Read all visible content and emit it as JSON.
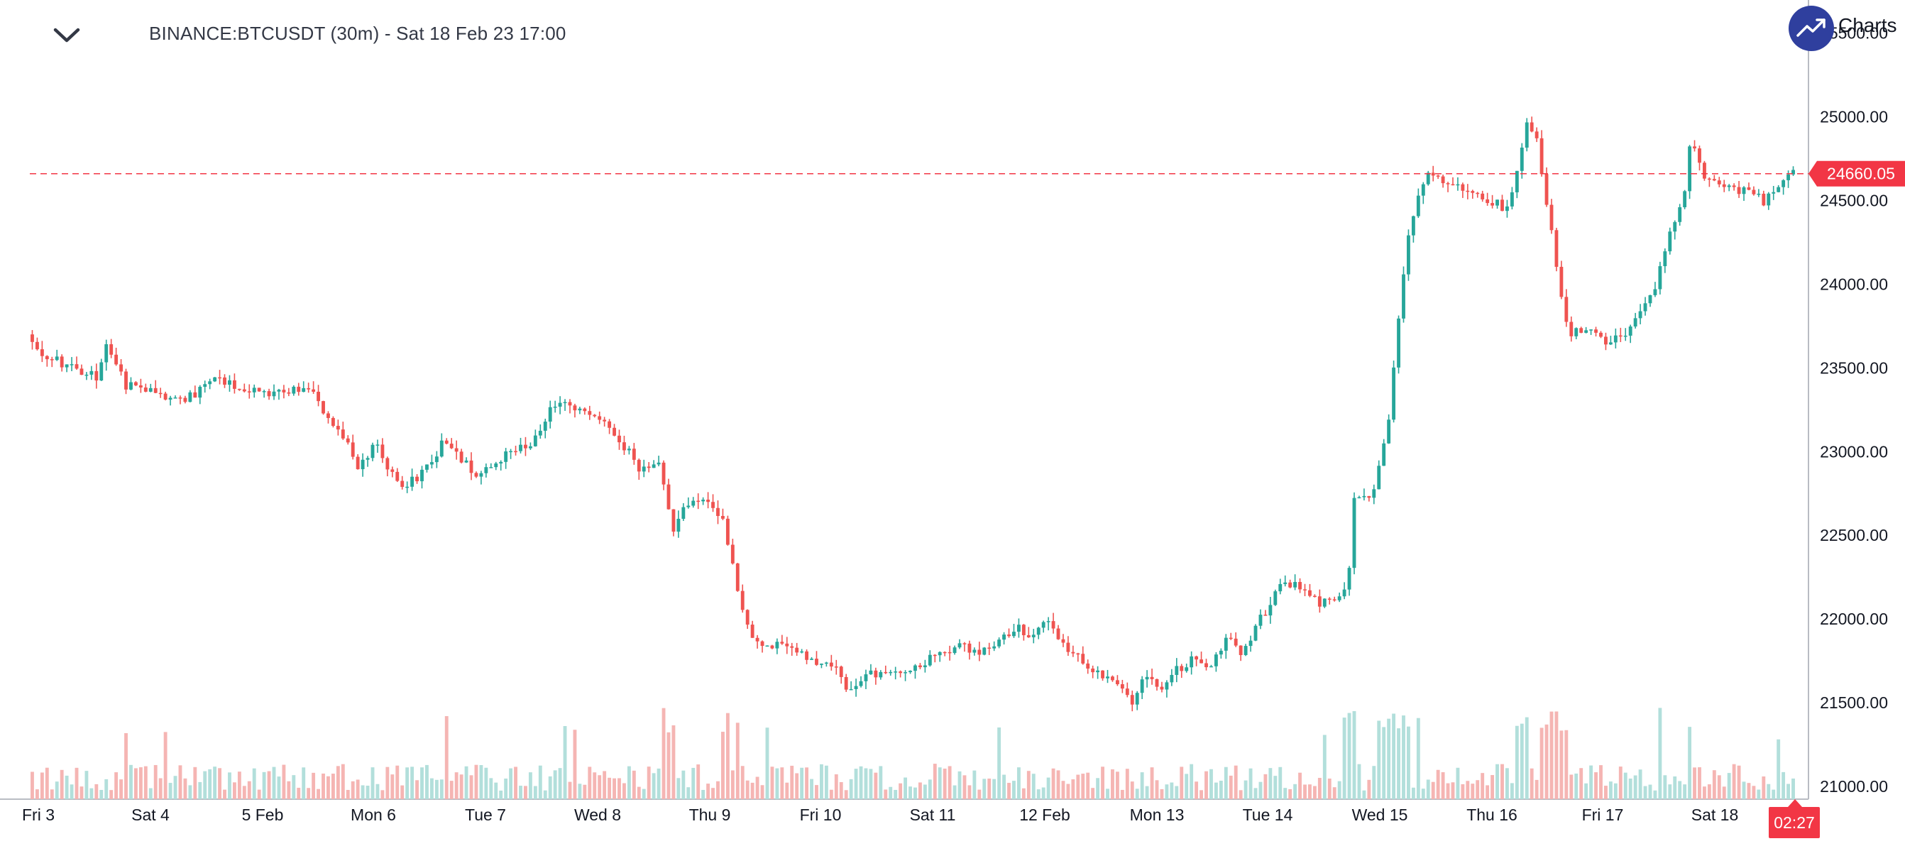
{
  "header": {
    "title": "BINANCE:BTCUSDT (30m) - Sat 18 Feb 23 17:00",
    "brand_label": "Charts"
  },
  "price_tag": {
    "value": "24660.05",
    "color": "#f23645"
  },
  "countdown": "02:27",
  "colors": {
    "up": "#26a69a",
    "down": "#ef5350",
    "vol_up": "#b2dfdb",
    "vol_down": "#f5b5b3",
    "brand": "#2f3f9e"
  },
  "chart_data": {
    "type": "candlestick",
    "symbol": "BINANCE:BTCUSDT",
    "interval": "30m",
    "y_axis": {
      "ticks": [
        21000,
        21500,
        22000,
        22500,
        23000,
        23500,
        24000,
        24500,
        25000,
        25500
      ],
      "tick_labels": [
        "21000.00",
        "21500.00",
        "22000.00",
        "22500.00",
        "23000.00",
        "23500.00",
        "24000.00",
        "24500.00",
        "25000.00",
        "25500.00"
      ],
      "range": [
        20980,
        25500
      ]
    },
    "x_axis": {
      "labels": [
        "Fri 3",
        "Sat 4",
        "5 Feb",
        "Mon 6",
        "Tue 7",
        "Wed 8",
        "Thu 9",
        "Fri 10",
        "Sat 11",
        "12 Feb",
        "Mon 13",
        "Tue 14",
        "Wed 15",
        "Thu 16",
        "Fri 17",
        "Sat 18"
      ]
    },
    "last_price": 24660.05,
    "approx_path": [
      [
        0,
        23700
      ],
      [
        2,
        23600
      ],
      [
        5,
        23550
      ],
      [
        10,
        23500
      ],
      [
        14,
        23450
      ],
      [
        16,
        23650
      ],
      [
        20,
        23400
      ],
      [
        24,
        23380
      ],
      [
        30,
        23300
      ],
      [
        34,
        23350
      ],
      [
        38,
        23450
      ],
      [
        44,
        23380
      ],
      [
        50,
        23350
      ],
      [
        54,
        23380
      ],
      [
        58,
        23350
      ],
      [
        60,
        23200
      ],
      [
        64,
        23100
      ],
      [
        67,
        22900
      ],
      [
        71,
        23050
      ],
      [
        74,
        22850
      ],
      [
        77,
        22800
      ],
      [
        81,
        22900
      ],
      [
        84,
        23050
      ],
      [
        88,
        22950
      ],
      [
        91,
        22850
      ],
      [
        95,
        22950
      ],
      [
        99,
        23000
      ],
      [
        104,
        23100
      ],
      [
        106,
        23250
      ],
      [
        110,
        23300
      ],
      [
        114,
        23200
      ],
      [
        118,
        23150
      ],
      [
        122,
        23000
      ],
      [
        124,
        22900
      ],
      [
        128,
        22950
      ],
      [
        131,
        22550
      ],
      [
        134,
        22700
      ],
      [
        138,
        22700
      ],
      [
        141,
        22600
      ],
      [
        145,
        22050
      ],
      [
        148,
        21850
      ],
      [
        152,
        21850
      ],
      [
        156,
        21800
      ],
      [
        160,
        21750
      ],
      [
        164,
        21700
      ],
      [
        166,
        21550
      ],
      [
        170,
        21650
      ],
      [
        174,
        21700
      ],
      [
        178,
        21700
      ],
      [
        182,
        21750
      ],
      [
        186,
        21800
      ],
      [
        188,
        21850
      ],
      [
        192,
        21800
      ],
      [
        196,
        21850
      ],
      [
        200,
        21950
      ],
      [
        204,
        21900
      ],
      [
        206,
        22000
      ],
      [
        210,
        21850
      ],
      [
        214,
        21750
      ],
      [
        218,
        21650
      ],
      [
        222,
        21600
      ],
      [
        224,
        21500
      ],
      [
        226,
        21650
      ],
      [
        230,
        21600
      ],
      [
        233,
        21700
      ],
      [
        236,
        21750
      ],
      [
        240,
        21700
      ],
      [
        243,
        21900
      ],
      [
        246,
        21800
      ],
      [
        250,
        22000
      ],
      [
        254,
        22200
      ],
      [
        258,
        22200
      ],
      [
        262,
        22100
      ],
      [
        265,
        22100
      ],
      [
        267,
        22150
      ],
      [
        268,
        22300
      ],
      [
        269,
        22700
      ],
      [
        272,
        22750
      ],
      [
        273,
        22800
      ],
      [
        274,
        22900
      ],
      [
        276,
        23200
      ],
      [
        278,
        23800
      ],
      [
        280,
        24300
      ],
      [
        282,
        24500
      ],
      [
        284,
        24650
      ],
      [
        288,
        24600
      ],
      [
        292,
        24550
      ],
      [
        296,
        24500
      ],
      [
        300,
        24450
      ],
      [
        302,
        24700
      ],
      [
        304,
        24950
      ],
      [
        306,
        24850
      ],
      [
        308,
        24500
      ],
      [
        309,
        24300
      ],
      [
        311,
        23900
      ],
      [
        313,
        23700
      ],
      [
        316,
        23750
      ],
      [
        320,
        23650
      ],
      [
        324,
        23700
      ],
      [
        326,
        23800
      ],
      [
        330,
        24000
      ],
      [
        333,
        24300
      ],
      [
        336,
        24550
      ],
      [
        337,
        24850
      ],
      [
        340,
        24650
      ],
      [
        344,
        24600
      ],
      [
        348,
        24550
      ],
      [
        352,
        24500
      ],
      [
        356,
        24600
      ],
      [
        358,
        24660
      ]
    ],
    "candle_count": 358
  }
}
